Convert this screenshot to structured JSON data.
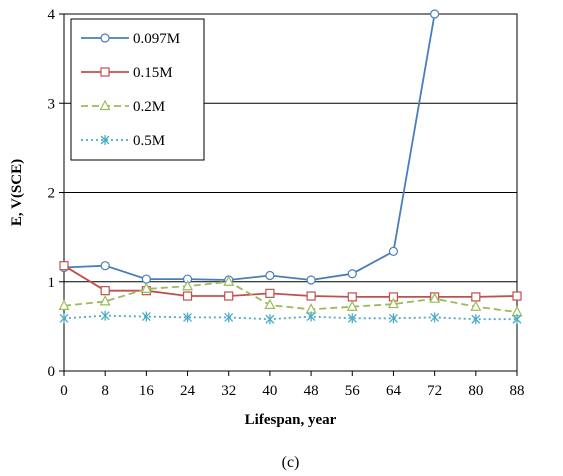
{
  "chart_data": {
    "type": "line",
    "xlabel": "Lifespan, year",
    "ylabel": "E, V(SCE)",
    "caption": "(c)",
    "x": [
      0,
      8,
      16,
      24,
      32,
      40,
      48,
      56,
      64,
      72,
      80,
      88
    ],
    "x_ticks": [
      "0",
      "8",
      "16",
      "24",
      "32",
      "40",
      "48",
      "56",
      "64",
      "72",
      "80",
      "88"
    ],
    "ylim": [
      0,
      4
    ],
    "y_ticks": [
      "0",
      "1",
      "2",
      "3",
      "4"
    ],
    "grid": "horizontal major gridlines",
    "legend_position": "top-left",
    "series": [
      {
        "name": "0.097M",
        "color": "#4a7ebb",
        "marker": "circle",
        "line": "solid",
        "values": [
          1.16,
          1.18,
          1.03,
          1.03,
          1.02,
          1.07,
          1.02,
          1.09,
          1.34,
          4.0,
          null,
          null
        ]
      },
      {
        "name": "0.15M",
        "color": "#c0504d",
        "marker": "square",
        "line": "solid",
        "values": [
          1.18,
          0.9,
          0.9,
          0.84,
          0.84,
          0.87,
          0.84,
          0.83,
          0.83,
          0.83,
          0.83,
          0.84
        ]
      },
      {
        "name": "0.2M",
        "color": "#9bbb59",
        "marker": "triangle",
        "line": "dashed",
        "values": [
          0.73,
          0.78,
          0.92,
          0.95,
          1.0,
          0.74,
          0.69,
          0.72,
          0.75,
          0.81,
          0.72,
          0.66
        ]
      },
      {
        "name": "0.5M",
        "color": "#4bacc6",
        "marker": "asterisk",
        "line": "dotted",
        "values": [
          0.59,
          0.62,
          0.61,
          0.6,
          0.6,
          0.58,
          0.61,
          0.59,
          0.59,
          0.6,
          0.58,
          0.58
        ]
      }
    ]
  }
}
